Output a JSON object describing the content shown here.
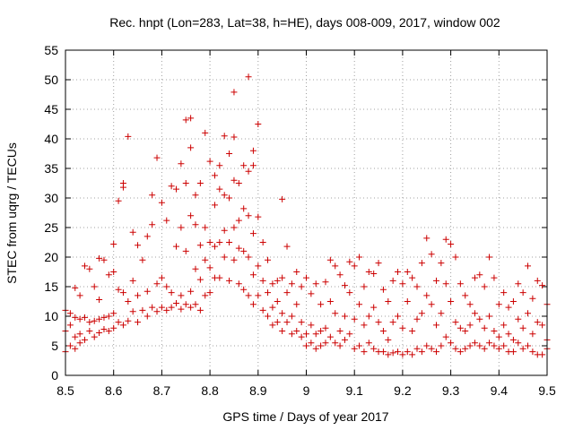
{
  "chart_data": {
    "type": "scatter",
    "title": "Rec. hnpt (Lon=283, Lat=38, h=HE), days 008-009, 2017, window 002",
    "xlabel": "GPS time / Days of year 2017",
    "ylabel": "STEC from uqrg / TECUs",
    "xlim": [
      8.5,
      9.5
    ],
    "ylim": [
      0,
      55
    ],
    "xticks": [
      "8.5",
      "8.6",
      "8.7",
      "8.8",
      "8.9",
      "9",
      "9.1",
      "9.2",
      "9.3",
      "9.4",
      "9.5"
    ],
    "yticks": [
      "0",
      "5",
      "10",
      "15",
      "20",
      "25",
      "30",
      "35",
      "40",
      "45",
      "50",
      "55"
    ],
    "grid": true,
    "marker": "+",
    "color": "#cc0000",
    "points": [
      [
        8.5,
        11.0
      ],
      [
        8.5,
        7.5
      ],
      [
        8.5,
        4.0
      ],
      [
        8.51,
        10.5
      ],
      [
        8.51,
        8.5
      ],
      [
        8.51,
        5.0
      ],
      [
        8.52,
        14.8
      ],
      [
        8.52,
        9.8
      ],
      [
        8.52,
        6.5
      ],
      [
        8.52,
        4.5
      ],
      [
        8.53,
        13.5
      ],
      [
        8.53,
        9.5
      ],
      [
        8.53,
        7.0
      ],
      [
        8.53,
        5.5
      ],
      [
        8.54,
        18.5
      ],
      [
        8.54,
        9.8
      ],
      [
        8.54,
        6.0
      ],
      [
        8.55,
        18.0
      ],
      [
        8.55,
        9.0
      ],
      [
        8.55,
        7.5
      ],
      [
        8.56,
        15.0
      ],
      [
        8.56,
        9.2
      ],
      [
        8.56,
        6.5
      ],
      [
        8.57,
        19.8
      ],
      [
        8.57,
        12.8
      ],
      [
        8.57,
        9.5
      ],
      [
        8.57,
        7.2
      ],
      [
        8.58,
        19.5
      ],
      [
        8.58,
        9.8
      ],
      [
        8.58,
        7.8
      ],
      [
        8.59,
        17.0
      ],
      [
        8.59,
        10.0
      ],
      [
        8.59,
        7.5
      ],
      [
        8.6,
        22.2
      ],
      [
        8.6,
        17.5
      ],
      [
        8.6,
        10.5
      ],
      [
        8.6,
        8.0
      ],
      [
        8.61,
        29.5
      ],
      [
        8.61,
        14.5
      ],
      [
        8.61,
        9.0
      ],
      [
        8.62,
        32.5
      ],
      [
        8.62,
        14.0
      ],
      [
        8.62,
        8.5
      ],
      [
        8.62,
        31.8
      ],
      [
        8.63,
        40.4
      ],
      [
        8.63,
        12.5
      ],
      [
        8.63,
        9.2
      ],
      [
        8.64,
        24.2
      ],
      [
        8.64,
        16.0
      ],
      [
        8.64,
        10.8
      ],
      [
        8.65,
        22.0
      ],
      [
        8.65,
        13.5
      ],
      [
        8.65,
        9.0
      ],
      [
        8.66,
        19.5
      ],
      [
        8.66,
        11.0
      ],
      [
        8.67,
        23.5
      ],
      [
        8.67,
        14.2
      ],
      [
        8.67,
        10.0
      ],
      [
        8.68,
        25.5
      ],
      [
        8.68,
        11.5
      ],
      [
        8.68,
        30.5
      ],
      [
        8.69,
        36.8
      ],
      [
        8.69,
        15.5
      ],
      [
        8.69,
        10.8
      ],
      [
        8.7,
        29.2
      ],
      [
        8.7,
        16.5
      ],
      [
        8.7,
        11.5
      ],
      [
        8.71,
        26.2
      ],
      [
        8.71,
        15.0
      ],
      [
        8.71,
        11.0
      ],
      [
        8.72,
        32.0
      ],
      [
        8.72,
        14.0
      ],
      [
        8.72,
        11.5
      ],
      [
        8.73,
        31.5
      ],
      [
        8.73,
        21.8
      ],
      [
        8.73,
        12.2
      ],
      [
        8.74,
        35.8
      ],
      [
        8.74,
        25.0
      ],
      [
        8.74,
        13.5
      ],
      [
        8.74,
        11.2
      ],
      [
        8.75,
        43.2
      ],
      [
        8.75,
        32.5
      ],
      [
        8.75,
        21.0
      ],
      [
        8.75,
        12.0
      ],
      [
        8.76,
        43.5
      ],
      [
        8.76,
        38.5
      ],
      [
        8.76,
        27.0
      ],
      [
        8.76,
        14.2
      ],
      [
        8.76,
        11.5
      ],
      [
        8.77,
        30.5
      ],
      [
        8.77,
        25.5
      ],
      [
        8.77,
        18.0
      ],
      [
        8.77,
        12.0
      ],
      [
        8.78,
        32.5
      ],
      [
        8.78,
        22.0
      ],
      [
        8.78,
        16.2
      ],
      [
        8.78,
        11.0
      ],
      [
        8.79,
        41.0
      ],
      [
        8.79,
        25.0
      ],
      [
        8.79,
        19.5
      ],
      [
        8.79,
        13.5
      ],
      [
        8.8,
        36.2
      ],
      [
        8.8,
        22.5
      ],
      [
        8.8,
        18.2
      ],
      [
        8.8,
        14.0
      ],
      [
        8.81,
        33.8
      ],
      [
        8.81,
        28.8
      ],
      [
        8.81,
        21.8
      ],
      [
        8.81,
        16.5
      ],
      [
        8.82,
        35.5
      ],
      [
        8.82,
        31.5
      ],
      [
        8.82,
        22.5
      ],
      [
        8.82,
        16.5
      ],
      [
        8.83,
        40.5
      ],
      [
        8.83,
        30.5
      ],
      [
        8.83,
        24.5
      ],
      [
        8.83,
        20.0
      ],
      [
        8.84,
        37.5
      ],
      [
        8.84,
        30.0
      ],
      [
        8.84,
        22.5
      ],
      [
        8.84,
        16.0
      ],
      [
        8.85,
        47.9
      ],
      [
        8.85,
        40.3
      ],
      [
        8.85,
        33.0
      ],
      [
        8.85,
        25.0
      ],
      [
        8.85,
        19.5
      ],
      [
        8.86,
        32.5
      ],
      [
        8.86,
        26.2
      ],
      [
        8.86,
        21.5
      ],
      [
        8.86,
        15.5
      ],
      [
        8.87,
        35.5
      ],
      [
        8.87,
        28.2
      ],
      [
        8.87,
        21.0
      ],
      [
        8.87,
        14.5
      ],
      [
        8.88,
        50.5
      ],
      [
        8.88,
        34.5
      ],
      [
        8.88,
        27.0
      ],
      [
        8.88,
        20.0
      ],
      [
        8.88,
        13.5
      ],
      [
        8.89,
        38.0
      ],
      [
        8.89,
        35.5
      ],
      [
        8.89,
        24.0
      ],
      [
        8.89,
        17.0
      ],
      [
        8.89,
        12.0
      ],
      [
        8.9,
        42.5
      ],
      [
        8.9,
        26.8
      ],
      [
        8.9,
        18.5
      ],
      [
        8.9,
        13.5
      ],
      [
        8.91,
        22.5
      ],
      [
        8.91,
        16.0
      ],
      [
        8.91,
        11.0
      ],
      [
        8.92,
        19.5
      ],
      [
        8.92,
        14.0
      ],
      [
        8.92,
        10.0
      ],
      [
        8.93,
        15.5
      ],
      [
        8.93,
        11.5
      ],
      [
        8.93,
        8.5
      ],
      [
        8.94,
        16.0
      ],
      [
        8.94,
        12.5
      ],
      [
        8.94,
        9.0
      ],
      [
        8.95,
        29.8
      ],
      [
        8.95,
        16.5
      ],
      [
        8.95,
        10.5
      ],
      [
        8.95,
        7.5
      ],
      [
        8.96,
        21.8
      ],
      [
        8.96,
        14.0
      ],
      [
        8.96,
        9.0
      ],
      [
        8.97,
        15.5
      ],
      [
        8.97,
        10.0
      ],
      [
        8.97,
        7.0
      ],
      [
        8.98,
        17.5
      ],
      [
        8.98,
        12.0
      ],
      [
        8.98,
        7.5
      ],
      [
        8.99,
        15.0
      ],
      [
        8.99,
        9.0
      ],
      [
        8.99,
        6.5
      ],
      [
        9.0,
        16.5
      ],
      [
        9.0,
        7.0
      ],
      [
        9.0,
        5.0
      ],
      [
        9.01,
        13.8
      ],
      [
        9.01,
        8.5
      ],
      [
        9.01,
        5.5
      ],
      [
        9.02,
        15.5
      ],
      [
        9.02,
        7.0
      ],
      [
        9.02,
        4.5
      ],
      [
        9.03,
        12.0
      ],
      [
        9.03,
        7.5
      ],
      [
        9.03,
        5.0
      ],
      [
        9.04,
        15.8
      ],
      [
        9.04,
        8.0
      ],
      [
        9.04,
        5.5
      ],
      [
        9.05,
        19.5
      ],
      [
        9.05,
        12.5
      ],
      [
        9.05,
        6.5
      ],
      [
        9.06,
        18.5
      ],
      [
        9.06,
        10.5
      ],
      [
        9.06,
        5.5
      ],
      [
        9.07,
        17.0
      ],
      [
        9.07,
        7.5
      ],
      [
        9.07,
        5.0
      ],
      [
        9.08,
        15.2
      ],
      [
        9.08,
        10.0
      ],
      [
        9.08,
        6.0
      ],
      [
        9.09,
        19.2
      ],
      [
        9.09,
        14.0
      ],
      [
        9.09,
        7.0
      ],
      [
        9.1,
        18.5
      ],
      [
        9.1,
        9.5
      ],
      [
        9.1,
        4.5
      ],
      [
        9.11,
        20.0
      ],
      [
        9.11,
        12.0
      ],
      [
        9.11,
        5.0
      ],
      [
        9.12,
        15.0
      ],
      [
        9.12,
        8.5
      ],
      [
        9.12,
        4.0
      ],
      [
        9.13,
        17.5
      ],
      [
        9.13,
        10.0
      ],
      [
        9.13,
        5.5
      ],
      [
        9.14,
        17.2
      ],
      [
        9.14,
        11.5
      ],
      [
        9.14,
        4.5
      ],
      [
        9.15,
        19.0
      ],
      [
        9.15,
        9.0
      ],
      [
        9.15,
        4.0
      ],
      [
        9.16,
        14.5
      ],
      [
        9.16,
        7.5
      ],
      [
        9.16,
        4.0
      ],
      [
        9.17,
        12.5
      ],
      [
        9.17,
        6.0
      ],
      [
        9.17,
        3.5
      ],
      [
        9.18,
        16.0
      ],
      [
        9.18,
        9.0
      ],
      [
        9.18,
        3.8
      ],
      [
        9.19,
        17.5
      ],
      [
        9.19,
        10.0
      ],
      [
        9.19,
        4.0
      ],
      [
        9.2,
        15.5
      ],
      [
        9.2,
        8.0
      ],
      [
        9.2,
        3.5
      ],
      [
        9.21,
        17.5
      ],
      [
        9.21,
        12.5
      ],
      [
        9.21,
        4.0
      ],
      [
        9.22,
        16.5
      ],
      [
        9.22,
        7.5
      ],
      [
        9.22,
        3.5
      ],
      [
        9.23,
        15.0
      ],
      [
        9.23,
        9.5
      ],
      [
        9.23,
        4.5
      ],
      [
        9.24,
        19.0
      ],
      [
        9.24,
        10.5
      ],
      [
        9.24,
        4.0
      ],
      [
        9.25,
        23.2
      ],
      [
        9.25,
        13.5
      ],
      [
        9.25,
        5.0
      ],
      [
        9.26,
        20.5
      ],
      [
        9.26,
        12.0
      ],
      [
        9.26,
        4.5
      ],
      [
        9.27,
        16.0
      ],
      [
        9.27,
        8.5
      ],
      [
        9.27,
        4.0
      ],
      [
        9.28,
        19.0
      ],
      [
        9.28,
        10.5
      ],
      [
        9.28,
        5.0
      ],
      [
        9.29,
        23.0
      ],
      [
        9.29,
        15.5
      ],
      [
        9.29,
        6.5
      ],
      [
        9.3,
        22.2
      ],
      [
        9.3,
        12.5
      ],
      [
        9.3,
        5.5
      ],
      [
        9.31,
        20.0
      ],
      [
        9.31,
        9.0
      ],
      [
        9.31,
        4.5
      ],
      [
        9.32,
        15.5
      ],
      [
        9.32,
        8.0
      ],
      [
        9.32,
        4.0
      ],
      [
        9.33,
        13.5
      ],
      [
        9.33,
        7.5
      ],
      [
        9.33,
        4.5
      ],
      [
        9.34,
        12.0
      ],
      [
        9.34,
        8.5
      ],
      [
        9.34,
        5.0
      ],
      [
        9.35,
        16.5
      ],
      [
        9.35,
        10.5
      ],
      [
        9.35,
        5.5
      ],
      [
        9.36,
        17.0
      ],
      [
        9.36,
        9.5
      ],
      [
        9.36,
        5.0
      ],
      [
        9.37,
        15.0
      ],
      [
        9.37,
        8.0
      ],
      [
        9.37,
        4.5
      ],
      [
        9.38,
        20.0
      ],
      [
        9.38,
        10.0
      ],
      [
        9.38,
        5.5
      ],
      [
        9.39,
        16.5
      ],
      [
        9.39,
        7.5
      ],
      [
        9.39,
        5.0
      ],
      [
        9.4,
        12.0
      ],
      [
        9.4,
        6.5
      ],
      [
        9.4,
        4.5
      ],
      [
        9.41,
        14.0
      ],
      [
        9.41,
        8.5
      ],
      [
        9.41,
        5.0
      ],
      [
        9.42,
        11.5
      ],
      [
        9.42,
        7.0
      ],
      [
        9.42,
        4.0
      ],
      [
        9.43,
        12.5
      ],
      [
        9.43,
        6.0
      ],
      [
        9.43,
        4.0
      ],
      [
        9.44,
        15.5
      ],
      [
        9.44,
        9.5
      ],
      [
        9.44,
        5.5
      ],
      [
        9.45,
        14.0
      ],
      [
        9.45,
        8.0
      ],
      [
        9.45,
        4.5
      ],
      [
        9.46,
        18.5
      ],
      [
        9.46,
        10.5
      ],
      [
        9.46,
        5.0
      ],
      [
        9.47,
        13.0
      ],
      [
        9.47,
        7.0
      ],
      [
        9.47,
        4.0
      ],
      [
        9.48,
        16.0
      ],
      [
        9.48,
        9.0
      ],
      [
        9.48,
        3.5
      ],
      [
        9.49,
        15.2
      ],
      [
        9.49,
        8.5
      ],
      [
        9.49,
        3.5
      ],
      [
        9.5,
        12.0
      ],
      [
        9.5,
        6.0
      ],
      [
        9.5,
        4.5
      ]
    ]
  }
}
